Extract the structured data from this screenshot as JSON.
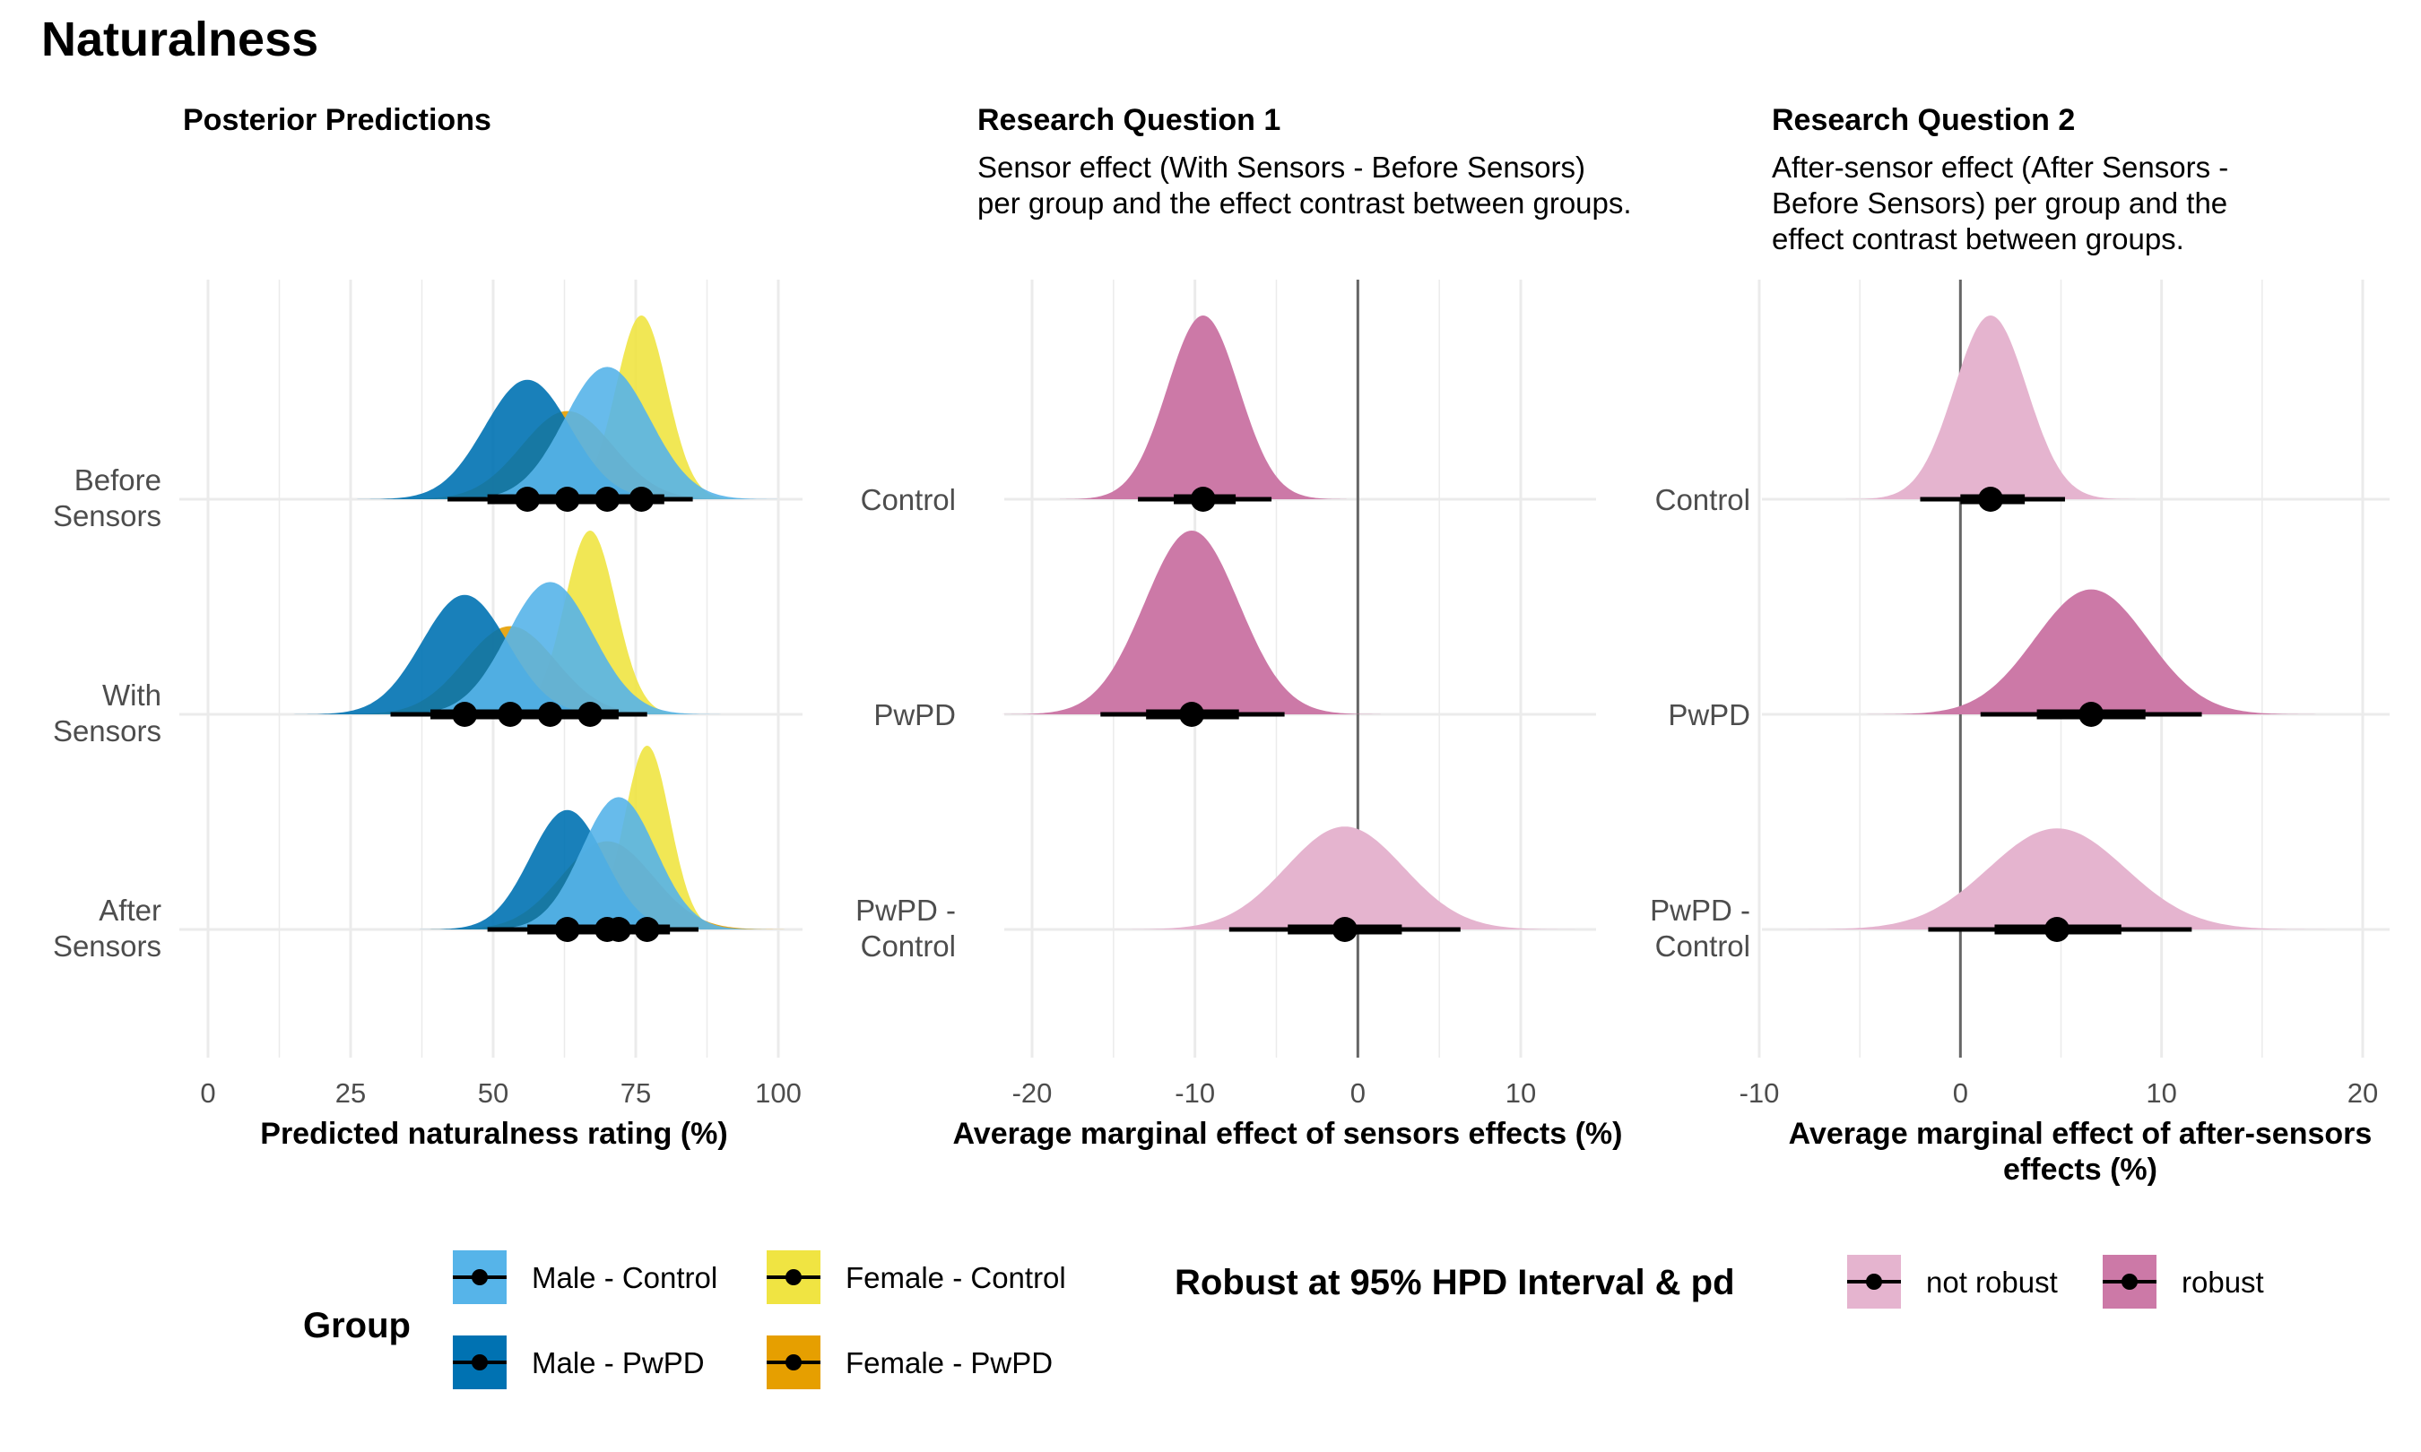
{
  "figure_title": "Naturalness",
  "colors": {
    "male_control": "#56B4E9",
    "male_pwpd": "#0072B2",
    "female_control": "#F0E442",
    "female_pwpd": "#E69F00",
    "not_robust": "#E5B4CF",
    "robust": "#CC79A7",
    "grid": "#EBEBEB",
    "zero_line": "#666666"
  },
  "legend": {
    "group_title": "Group",
    "group_items": [
      "Male - Control",
      "Male - PwPD",
      "Female - Control",
      "Female - PwPD"
    ],
    "robust_title": "Robust at 95% HPD Interval & pd",
    "robust_items": [
      "not robust",
      "robust"
    ]
  },
  "chart_data": [
    {
      "type": "density-interval",
      "title": "Posterior Predictions",
      "subtitle": "",
      "xlabel": "Predicted naturalness rating (%)",
      "xlim": [
        0,
        100
      ],
      "xticks": [
        0,
        25,
        50,
        75,
        100
      ],
      "categories": [
        "Before\nSensors",
        "With\nSensors",
        "After\nSensors"
      ],
      "series": [
        {
          "name": "Male - Control",
          "median": [
            70,
            60,
            72
          ],
          "sd": [
            7.5,
            7.5,
            6.5
          ],
          "hpd95": [
            [
              58,
              82
            ],
            [
              47,
              73
            ],
            [
              60,
              84
            ]
          ],
          "hpd66": [
            [
              64,
              76
            ],
            [
              53,
              67
            ],
            [
              66,
              78
            ]
          ]
        },
        {
          "name": "Male - PwPD",
          "median": [
            56,
            45,
            63
          ],
          "sd": [
            7.5,
            7.5,
            6.5
          ],
          "hpd95": [
            [
              42,
              70
            ],
            [
              32,
              60
            ],
            [
              49,
              77
            ]
          ],
          "hpd66": [
            [
              49,
              63
            ],
            [
              39,
              52
            ],
            [
              56,
              70
            ]
          ]
        },
        {
          "name": "Female - Control",
          "median": [
            76,
            67,
            77
          ],
          "sd": [
            4.5,
            4.5,
            4
          ],
          "hpd95": [
            [
              67,
              85
            ],
            [
              58,
              77
            ],
            [
              68,
              86
            ]
          ],
          "hpd66": [
            [
              72,
              80
            ],
            [
              63,
              72
            ],
            [
              73,
              81
            ]
          ]
        },
        {
          "name": "Female - PwPD",
          "median": [
            63,
            53,
            70
          ],
          "sd": [
            8,
            8,
            8
          ],
          "hpd95": [
            [
              48,
              78
            ],
            [
              38,
              68
            ],
            [
              55,
              85
            ]
          ],
          "hpd66": [
            [
              56,
              70
            ],
            [
              46,
              60
            ],
            [
              62,
              77
            ]
          ]
        }
      ]
    },
    {
      "type": "density-interval",
      "title": "Research Question 1",
      "subtitle": "Sensor effect (With Sensors - Before Sensors)\nper group and the effect contrast between groups.",
      "xlabel": "Average marginal effect of sensors effects (%)",
      "xlim": [
        -22,
        15
      ],
      "xticks": [
        -20,
        -10,
        0,
        10
      ],
      "reference_line": 0,
      "categories": [
        "Control",
        "PwPD",
        "PwPD -\nControl"
      ],
      "rows": [
        {
          "median": -9.5,
          "sd": 2.2,
          "hpd95": [
            -13.5,
            -5.3
          ],
          "hpd66": [
            -11.3,
            -7.5
          ],
          "robust": true
        },
        {
          "median": -10.2,
          "sd": 2.9,
          "hpd95": [
            -15.8,
            -4.5
          ],
          "hpd66": [
            -13,
            -7.3
          ],
          "robust": true
        },
        {
          "median": -0.8,
          "sd": 3.6,
          "hpd95": [
            -7.9,
            6.3
          ],
          "hpd66": [
            -4.3,
            2.7
          ],
          "robust": false
        }
      ]
    },
    {
      "type": "density-interval",
      "title": "Research Question 2",
      "subtitle": "After-sensor effect (After Sensors -\nBefore Sensors) per group and the\neffect contrast between groups.",
      "xlabel": "Average marginal effect of after-sensors\neffects (%)",
      "xlim": [
        -10,
        21
      ],
      "xticks": [
        -10,
        0,
        10,
        20
      ],
      "reference_line": 0,
      "categories": [
        "Control",
        "PwPD",
        "PwPD -\nControl"
      ],
      "rows": [
        {
          "median": 1.5,
          "sd": 1.8,
          "hpd95": [
            -2,
            5.2
          ],
          "hpd66": [
            0,
            3.2
          ],
          "robust": false
        },
        {
          "median": 6.5,
          "sd": 2.8,
          "hpd95": [
            1,
            12
          ],
          "hpd66": [
            3.8,
            9.2
          ],
          "robust": true
        },
        {
          "median": 4.8,
          "sd": 3.4,
          "hpd95": [
            -1.6,
            11.5
          ],
          "hpd66": [
            1.7,
            8
          ],
          "robust": false
        }
      ]
    }
  ]
}
